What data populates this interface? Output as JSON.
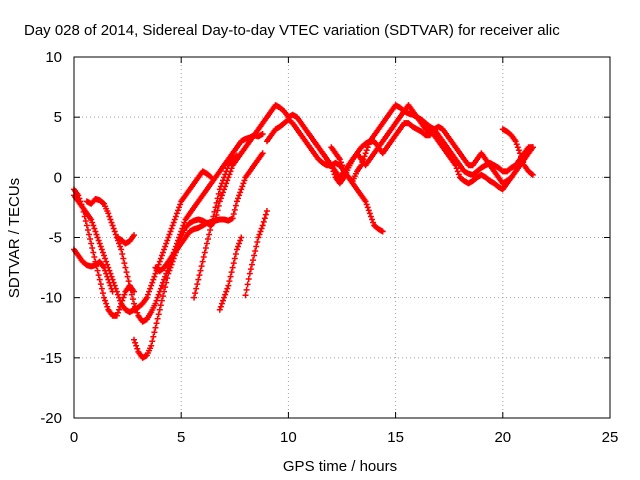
{
  "chart_data": {
    "type": "scatter",
    "title": "Day 028 of 2014, Sidereal Day-to-day VTEC variation (SDTVAR) for receiver alic",
    "xlabel": "GPS time / hours",
    "ylabel": "SDTVAR / TECUs",
    "xlim": [
      0,
      25
    ],
    "ylim": [
      -20,
      10
    ],
    "xticks": [
      0,
      5,
      10,
      15,
      20,
      25
    ],
    "yticks": [
      -20,
      -15,
      -10,
      -5,
      0,
      5,
      10
    ],
    "grid": true,
    "marker": "plus",
    "color": "#ff0000",
    "series": [
      {
        "x": [
          0.0,
          0.2,
          0.4,
          0.6,
          0.8,
          1.0,
          1.2,
          1.4,
          1.6,
          1.8,
          2.0,
          2.2,
          2.4,
          2.6,
          2.8
        ],
        "y": [
          -1.0,
          -1.5,
          -2.5,
          -4.0,
          -5.5,
          -7.0,
          -8.5,
          -10.0,
          -11.0,
          -11.5,
          -11.5,
          -10.5,
          -9.5,
          -9.0,
          -9.5
        ]
      },
      {
        "x": [
          0.0,
          0.2,
          0.4,
          0.6,
          0.8,
          1.0,
          1.2,
          1.4,
          1.6,
          1.8
        ],
        "y": [
          -6.0,
          -6.5,
          -7.0,
          -7.3,
          -7.4,
          -7.3,
          -7.0,
          -7.5,
          -8.5,
          -9.5
        ]
      },
      {
        "x": [
          0.0,
          0.2,
          0.4,
          0.6,
          0.8,
          1.0,
          1.2,
          1.4,
          1.6,
          1.8,
          2.0,
          2.2,
          2.4,
          2.6,
          2.8,
          3.0,
          3.2,
          3.4,
          3.6,
          3.8,
          4.0,
          4.2,
          4.4,
          4.6,
          4.8,
          5.0,
          5.2,
          5.4,
          5.6,
          5.8,
          6.0,
          6.2,
          6.4
        ],
        "y": [
          -1.5,
          -2.0,
          -2.5,
          -3.0,
          -3.5,
          -4.5,
          -5.5,
          -6.5,
          -7.5,
          -8.5,
          -9.5,
          -10.5,
          -11.0,
          -11.2,
          -11.0,
          -10.8,
          -10.5,
          -10.0,
          -9.0,
          -8.0,
          -7.0,
          -6.0,
          -5.0,
          -4.0,
          -3.0,
          -2.0,
          -1.5,
          -1.0,
          -0.5,
          0.0,
          0.5,
          0.3,
          0.0
        ]
      },
      {
        "x": [
          0.6,
          0.8,
          1.0,
          1.2,
          1.4,
          1.6,
          1.8,
          2.0,
          2.2,
          2.4,
          2.6,
          2.8,
          3.0,
          3.2,
          3.4,
          3.6,
          3.8,
          4.0,
          4.2,
          4.4,
          4.6,
          4.8,
          5.0,
          5.2,
          5.4,
          5.6,
          5.8,
          6.0,
          6.2,
          6.4,
          6.6,
          6.8,
          7.0,
          7.2,
          7.4,
          7.6,
          7.8,
          8.0,
          8.2,
          8.4,
          8.6,
          8.8
        ],
        "y": [
          -2.0,
          -2.2,
          -1.8,
          -1.9,
          -2.2,
          -3.0,
          -4.0,
          -5.0,
          -6.0,
          -7.5,
          -9.0,
          -10.5,
          -11.5,
          -12.0,
          -11.8,
          -11.2,
          -10.5,
          -9.5,
          -8.5,
          -7.5,
          -6.5,
          -5.5,
          -4.5,
          -3.5,
          -3.0,
          -2.5,
          -2.0,
          -1.5,
          -1.0,
          -0.5,
          0.0,
          0.5,
          1.0,
          1.5,
          2.0,
          2.5,
          3.0,
          3.2,
          3.3,
          3.5,
          3.4,
          3.6
        ]
      },
      {
        "x": [
          2.0,
          2.2,
          2.4,
          2.6,
          2.8
        ],
        "y": [
          -5.0,
          -5.2,
          -5.5,
          -5.3,
          -4.8
        ]
      },
      {
        "x": [
          2.8,
          3.0,
          3.2,
          3.4,
          3.6,
          3.8,
          4.0,
          4.2,
          4.4,
          4.6,
          4.8,
          5.0,
          5.2,
          5.4,
          5.6,
          5.8,
          6.0,
          6.2,
          6.4,
          6.6,
          6.8,
          7.0,
          7.2,
          7.4,
          7.6,
          7.8,
          8.0,
          8.2,
          8.4,
          8.6,
          8.8,
          9.0,
          9.2,
          9.4,
          9.6,
          9.8,
          10.0
        ],
        "y": [
          -13.5,
          -14.5,
          -15.0,
          -14.8,
          -14.0,
          -12.5,
          -11.0,
          -9.5,
          -8.0,
          -7.0,
          -6.0,
          -5.0,
          -4.2,
          -3.8,
          -3.6,
          -3.5,
          -3.6,
          -3.8,
          -4.0,
          -3.5,
          -2.0,
          -1.0,
          0.0,
          1.0,
          1.5,
          2.0,
          2.5,
          3.0,
          3.5,
          4.0,
          4.5,
          5.0,
          5.5,
          6.0,
          5.8,
          5.5,
          5.0
        ]
      },
      {
        "x": [
          3.8,
          4.0,
          4.2,
          4.4,
          4.6,
          4.8,
          5.0,
          5.2,
          5.4,
          5.6,
          5.8,
          6.0,
          6.2,
          6.4,
          6.6,
          6.8,
          7.0,
          7.2,
          7.4,
          7.6,
          7.8,
          8.0,
          8.2,
          8.4,
          8.6,
          8.8
        ],
        "y": [
          -7.5,
          -7.8,
          -7.5,
          -7.0,
          -6.5,
          -6.0,
          -5.5,
          -5.0,
          -4.5,
          -4.3,
          -4.2,
          -4.0,
          -3.8,
          -3.7,
          -3.6,
          -3.5,
          -3.5,
          -3.6,
          -3.4,
          -2.0,
          -1.0,
          0.0,
          0.5,
          1.0,
          1.5,
          2.0
        ]
      },
      {
        "x": [
          5.6,
          5.8,
          6.0,
          6.2,
          6.4,
          6.6,
          6.8,
          7.0,
          7.2,
          7.4,
          7.6
        ],
        "y": [
          -10.0,
          -8.5,
          -7.0,
          -5.5,
          -4.0,
          -2.5,
          -1.0,
          0.0,
          1.0,
          1.5,
          1.8
        ]
      },
      {
        "x": [
          6.8,
          7.0,
          7.2,
          7.4,
          7.6,
          7.8
        ],
        "y": [
          -11.0,
          -10.0,
          -9.0,
          -7.5,
          -6.0,
          -5.0
        ]
      },
      {
        "x": [
          8.0,
          8.2,
          8.4,
          8.6,
          8.8,
          9.0
        ],
        "y": [
          -9.8,
          -8.0,
          -6.5,
          -5.0,
          -4.0,
          -2.8
        ]
      },
      {
        "x": [
          9.0,
          9.2,
          9.4,
          9.6,
          9.8,
          10.0,
          10.2,
          10.4,
          10.6,
          10.8,
          11.0,
          11.2,
          11.4,
          11.6,
          11.8,
          12.0,
          12.2,
          12.4,
          12.6,
          12.8,
          13.0,
          13.2,
          13.4,
          13.6,
          13.8,
          14.0,
          14.2,
          14.4
        ],
        "y": [
          3.0,
          3.5,
          4.0,
          4.2,
          4.5,
          4.8,
          4.5,
          4.0,
          3.5,
          3.0,
          2.5,
          2.0,
          1.5,
          1.2,
          1.0,
          1.0,
          1.2,
          1.0,
          0.5,
          0.0,
          -0.5,
          -1.0,
          -1.5,
          -2.0,
          -3.0,
          -4.0,
          -4.3,
          -4.5
        ]
      },
      {
        "x": [
          10.0,
          10.2,
          10.4,
          10.6,
          10.8,
          11.0,
          11.2,
          11.4,
          11.6,
          11.8,
          12.0,
          12.2,
          12.4,
          12.6,
          12.8,
          13.0,
          13.2,
          13.4,
          13.6,
          13.8,
          14.0,
          14.2,
          14.4,
          14.6,
          14.8,
          15.0,
          15.2,
          15.4,
          15.6,
          15.8,
          16.0,
          16.2,
          16.4,
          16.6,
          16.8,
          17.0,
          17.2,
          17.4,
          17.6,
          17.8,
          18.0,
          18.2,
          18.4,
          18.6,
          18.8,
          19.0,
          19.2,
          19.4,
          19.6,
          19.8,
          20.0,
          20.2,
          20.4,
          20.6,
          20.8,
          21.0,
          21.2,
          21.4
        ],
        "y": [
          5.0,
          5.2,
          5.0,
          4.5,
          4.0,
          3.5,
          3.0,
          2.5,
          2.0,
          1.5,
          1.0,
          0.5,
          0.0,
          0.5,
          1.0,
          1.5,
          2.0,
          2.5,
          2.8,
          3.0,
          3.5,
          4.0,
          4.5,
          5.0,
          5.5,
          6.0,
          5.8,
          5.5,
          5.3,
          5.2,
          5.0,
          4.8,
          4.5,
          4.2,
          4.0,
          3.5,
          3.0,
          2.5,
          2.0,
          1.5,
          1.0,
          0.5,
          0.3,
          0.2,
          0.5,
          0.8,
          1.0,
          1.2,
          1.0,
          0.8,
          0.5,
          0.5,
          0.8,
          1.0,
          1.5,
          2.0,
          2.5,
          2.5
        ]
      },
      {
        "x": [
          11.0,
          11.2,
          11.4,
          11.6,
          11.8,
          12.0,
          12.2,
          12.4,
          12.6,
          12.8,
          13.0,
          13.2,
          13.4,
          13.6,
          13.8,
          14.0,
          14.2,
          14.4,
          14.6,
          14.8,
          15.0,
          15.2,
          15.4,
          15.6,
          15.8,
          16.0,
          16.2,
          16.4,
          16.6,
          16.8,
          17.0,
          17.2,
          17.4,
          17.6,
          17.8,
          18.0,
          18.2,
          18.4,
          18.6,
          18.8,
          19.0,
          19.2,
          19.4,
          19.6,
          19.8,
          20.0,
          20.2,
          20.4,
          20.6,
          20.8,
          21.0,
          21.2,
          21.4
        ],
        "y": [
          3.5,
          3.0,
          2.5,
          2.0,
          1.5,
          1.0,
          0.0,
          -0.5,
          0.0,
          0.8,
          1.5,
          2.0,
          1.5,
          1.0,
          1.5,
          2.0,
          2.5,
          3.0,
          3.5,
          4.0,
          4.5,
          5.0,
          5.5,
          6.0,
          5.5,
          5.0,
          4.5,
          4.0,
          3.8,
          3.5,
          3.0,
          2.5,
          2.0,
          1.5,
          1.0,
          0.0,
          -0.3,
          -0.5,
          -0.3,
          0.0,
          0.2,
          0.0,
          -0.3,
          -0.5,
          -0.8,
          -1.0,
          -0.5,
          0.0,
          0.5,
          1.0,
          1.5,
          2.0,
          2.5
        ]
      },
      {
        "x": [
          12.0,
          12.2,
          12.4,
          12.6,
          12.8,
          13.0,
          13.2,
          13.4,
          13.6,
          13.8,
          14.0,
          14.2,
          14.4,
          14.6,
          14.8,
          15.0,
          15.2,
          15.4,
          15.6,
          15.8,
          16.0,
          16.2,
          16.4,
          16.6,
          16.8,
          17.0,
          17.2,
          17.4,
          17.6,
          17.8,
          18.0,
          18.2,
          18.4,
          18.6,
          18.8,
          19.0,
          19.2,
          19.4,
          19.6,
          19.8,
          20.0,
          20.2,
          20.4,
          20.6,
          20.8,
          21.0,
          21.2,
          21.4
        ],
        "y": [
          2.5,
          2.0,
          1.5,
          0.5,
          0.0,
          -0.3,
          0.5,
          1.0,
          2.0,
          3.0,
          3.0,
          2.5,
          2.0,
          2.5,
          3.0,
          3.5,
          4.0,
          4.5,
          4.5,
          4.2,
          4.0,
          3.8,
          3.5,
          3.5,
          4.0,
          4.2,
          4.0,
          3.5,
          3.0,
          2.5,
          2.0,
          1.5,
          1.0,
          1.0,
          1.5,
          2.0,
          1.5,
          1.0,
          0.5,
          0.0,
          -0.5,
          -0.3,
          0.0,
          0.5,
          1.0,
          1.5,
          2.0,
          2.5
        ]
      },
      {
        "x": [
          20.0,
          20.2,
          20.4,
          20.6,
          20.8,
          21.0,
          21.2,
          21.4
        ],
        "y": [
          4.0,
          3.8,
          3.5,
          3.0,
          2.0,
          1.0,
          0.5,
          0.2
        ]
      }
    ]
  }
}
